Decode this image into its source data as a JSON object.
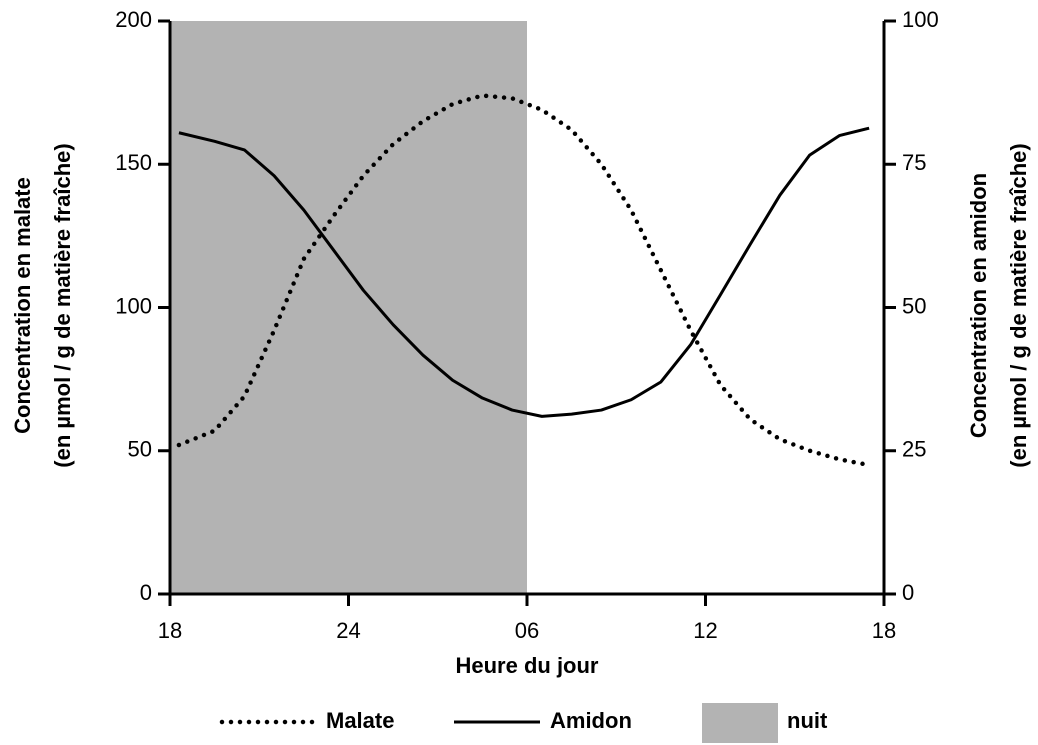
{
  "chart_data": {
    "type": "line",
    "xlabel": "Heure du jour",
    "ylabel": [
      "Concentration en malate",
      "(en µmol / g de matière fraîche)"
    ],
    "y2label": [
      "Concentration en amidon",
      "(en µmol / g de matière fraîche)"
    ],
    "xlim": [
      18,
      42
    ],
    "xticks": [
      18,
      24,
      {
        "value": 30,
        "label": "06"
      },
      {
        "value": 36,
        "label": "12"
      },
      {
        "value": 42,
        "label": "18"
      }
    ],
    "ylim": [
      0,
      200
    ],
    "yticks": [
      0,
      50,
      100,
      150,
      200
    ],
    "y2lim": [
      0,
      100
    ],
    "y2ticks": [
      0,
      25,
      50,
      75,
      100
    ],
    "x": [
      18.3,
      19.5,
      20.5,
      21.5,
      22.5,
      23.5,
      24.5,
      25.5,
      26.5,
      27.5,
      28.5,
      29.5,
      30.5,
      31.5,
      32.5,
      33.5,
      34.5,
      35.5,
      36.5,
      37.5,
      38.5,
      39.5,
      40.5,
      41.5
    ],
    "series": [
      {
        "name": "Malate",
        "color": "#000000",
        "style": "dotted",
        "axis": "y",
        "values": [
          52,
          57,
          69,
          92,
          117,
          132,
          146,
          157,
          165,
          171,
          174,
          173,
          169,
          162,
          150,
          134,
          113,
          92,
          73,
          61,
          54,
          50,
          47,
          45
        ]
      },
      {
        "name": "Amidon",
        "color": "#000000",
        "style": "solid",
        "axis": "y2",
        "values": [
          80.5,
          79,
          77.5,
          73,
          67,
          60,
          53,
          47,
          41.7,
          37.3,
          34.2,
          32.1,
          31,
          31.4,
          32.1,
          33.9,
          37,
          43.5,
          52.2,
          61,
          69.6,
          76.6,
          80,
          81.3
        ]
      }
    ],
    "shaded_regions": [
      {
        "name": "nuit",
        "x": [
          18,
          30
        ],
        "color": "#b3b3b3"
      }
    ],
    "legend": "bottom"
  }
}
